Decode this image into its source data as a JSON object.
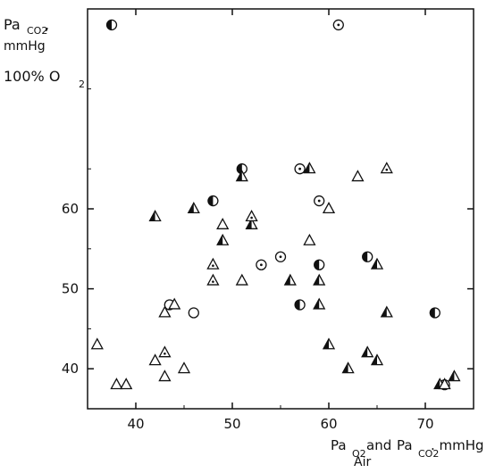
{
  "chart_data": {
    "type": "scatter",
    "title": "",
    "ylabel": {
      "main": "Pa",
      "sub": "CO2",
      "comma": ",",
      "unit": "mmHg",
      "cond_main": "100% O",
      "cond_sub": "2"
    },
    "xlabel": {
      "p1": "Pa",
      "p1_sub": "O2",
      "and": "and",
      "p2": "Pa",
      "p2_sub": "CO2",
      "unit": ". mmHg",
      "cond": "Air"
    },
    "xlim": [
      35,
      75
    ],
    "ylim": [
      35,
      85
    ],
    "xticks": [
      40,
      50,
      60,
      70
    ],
    "xtick_labels": [
      "40",
      "50",
      "60",
      "70"
    ],
    "yticks": [
      40,
      50,
      60
    ],
    "ytick_labels": [
      "40",
      "50",
      "60"
    ],
    "grid": false,
    "series": [
      {
        "marker": "half-circle",
        "points": [
          [
            37.5,
            83
          ],
          [
            51,
            65
          ],
          [
            48,
            61
          ],
          [
            59,
            53
          ],
          [
            64,
            54
          ],
          [
            57,
            48
          ],
          [
            71,
            47
          ]
        ]
      },
      {
        "marker": "dot-circle",
        "points": [
          [
            61,
            83
          ],
          [
            57,
            65
          ],
          [
            59,
            61
          ],
          [
            53,
            53
          ],
          [
            55,
            54
          ]
        ]
      },
      {
        "marker": "open-circle",
        "points": [
          [
            43.5,
            48
          ],
          [
            46,
            47
          ],
          [
            72,
            38
          ]
        ]
      },
      {
        "marker": "half-triangle",
        "points": [
          [
            51,
            64
          ],
          [
            58,
            65
          ],
          [
            42,
            59
          ],
          [
            46,
            60
          ],
          [
            52,
            58
          ],
          [
            49,
            56
          ],
          [
            65,
            53
          ],
          [
            56,
            51
          ],
          [
            59,
            51
          ],
          [
            59,
            48
          ],
          [
            66,
            47
          ],
          [
            60,
            43
          ],
          [
            64,
            42
          ],
          [
            65,
            41
          ],
          [
            62,
            40
          ],
          [
            71.5,
            38
          ],
          [
            73,
            39
          ]
        ]
      },
      {
        "marker": "dot-triangle",
        "points": [
          [
            66,
            65
          ],
          [
            52,
            59
          ],
          [
            48,
            53
          ],
          [
            48,
            51
          ],
          [
            43,
            42
          ]
        ]
      },
      {
        "marker": "open-triangle",
        "points": [
          [
            63,
            64
          ],
          [
            49,
            58
          ],
          [
            60,
            60
          ],
          [
            58,
            56
          ],
          [
            51,
            51
          ],
          [
            44,
            48
          ],
          [
            43,
            47
          ],
          [
            36,
            43
          ],
          [
            42,
            41
          ],
          [
            38,
            38
          ],
          [
            39,
            38
          ],
          [
            43,
            39
          ],
          [
            45,
            40
          ],
          [
            72,
            38
          ]
        ]
      }
    ]
  }
}
